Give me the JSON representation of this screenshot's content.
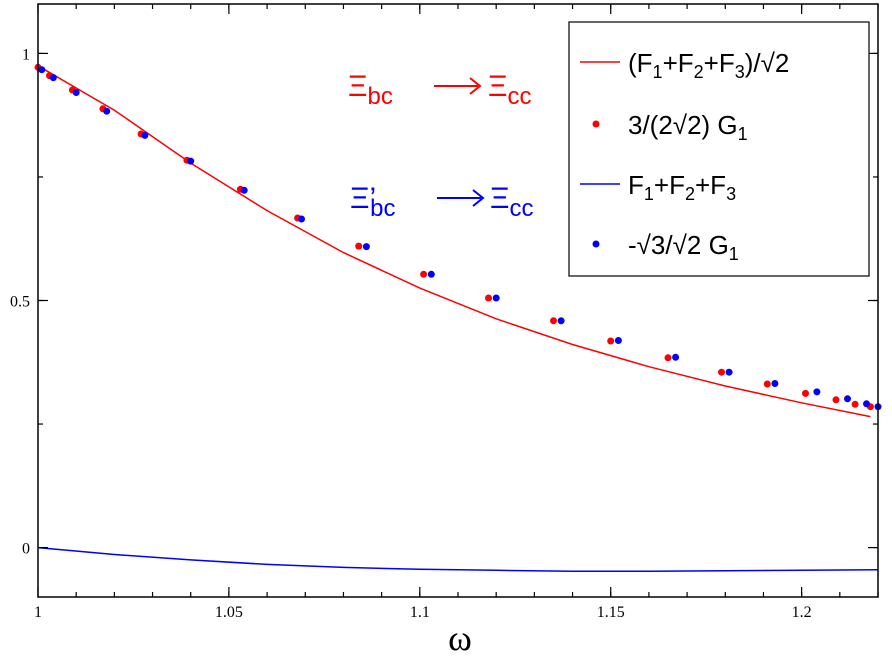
{
  "chart_data": {
    "type": "line",
    "title": "",
    "xlabel": "ω",
    "ylabel": "",
    "xlim": [
      1.0,
      1.22
    ],
    "ylim": [
      -0.1,
      1.1
    ],
    "x_ticks": [
      1,
      1.05,
      1.1,
      1.15,
      1.2
    ],
    "x_tick_labels": [
      "1",
      "1.05",
      "1.1",
      "1.15",
      "1.2"
    ],
    "y_ticks": [
      0,
      0.5,
      1
    ],
    "y_tick_labels": [
      "0",
      "0.5",
      "1"
    ],
    "grid": false,
    "legend_position": "top-right",
    "colors": {
      "red": "#ff0000",
      "blue": "#0000ff"
    },
    "series": [
      {
        "name": "(F1+F2+F3)/√2",
        "kind": "line",
        "color": "#ff0000",
        "x": [
          1.0,
          1.02,
          1.04,
          1.06,
          1.08,
          1.1,
          1.12,
          1.14,
          1.16,
          1.18,
          1.2,
          1.218
        ],
        "y": [
          0.975,
          0.885,
          0.778,
          0.682,
          0.597,
          0.525,
          0.463,
          0.411,
          0.366,
          0.327,
          0.293,
          0.265
        ]
      },
      {
        "name": "3/(2√2) G1",
        "kind": "points",
        "color": "#ff0000",
        "x": [
          1.0,
          1.003,
          1.009,
          1.017,
          1.027,
          1.039,
          1.053,
          1.068,
          1.084,
          1.101,
          1.118,
          1.135,
          1.15,
          1.165,
          1.179,
          1.191,
          1.201,
          1.209,
          1.214,
          1.218
        ],
        "y": [
          0.972,
          0.955,
          0.926,
          0.888,
          0.837,
          0.784,
          0.725,
          0.667,
          0.61,
          0.553,
          0.505,
          0.459,
          0.418,
          0.384,
          0.355,
          0.331,
          0.312,
          0.299,
          0.29,
          0.285
        ]
      },
      {
        "name": "F1+F2+F3",
        "kind": "line",
        "color": "#0000ff",
        "x": [
          1.0,
          1.02,
          1.04,
          1.06,
          1.08,
          1.1,
          1.12,
          1.14,
          1.16,
          1.18,
          1.2,
          1.22
        ],
        "y": [
          0.0,
          -0.014,
          -0.025,
          -0.034,
          -0.04,
          -0.044,
          -0.046,
          -0.048,
          -0.048,
          -0.047,
          -0.046,
          -0.045
        ]
      },
      {
        "name": "-√3/√2 G1",
        "kind": "points",
        "color": "#0000ff",
        "x": [
          1.001,
          1.004,
          1.01,
          1.018,
          1.028,
          1.04,
          1.054,
          1.069,
          1.086,
          1.103,
          1.12,
          1.137,
          1.152,
          1.167,
          1.181,
          1.193,
          1.204,
          1.212,
          1.217,
          1.22
        ],
        "y": [
          0.967,
          0.951,
          0.921,
          0.883,
          0.834,
          0.782,
          0.723,
          0.665,
          0.609,
          0.553,
          0.505,
          0.459,
          0.419,
          0.385,
          0.355,
          0.332,
          0.315,
          0.301,
          0.291,
          0.285
        ]
      }
    ],
    "legend": [
      {
        "label": "(F1+F2+F3)/√2",
        "kind": "line",
        "color": "#ff0000"
      },
      {
        "label": "3/(2√2) G1",
        "kind": "points",
        "color": "#ff0000"
      },
      {
        "label": "F1+F2+F3",
        "kind": "line",
        "color": "#0000ff"
      },
      {
        "label": "-√3/√2 G1",
        "kind": "points",
        "color": "#0000ff"
      }
    ],
    "annotations": [
      {
        "text": "Ξbc → Ξcc",
        "color": "#ff0000"
      },
      {
        "text": "Ξ'bc → Ξcc",
        "color": "#0000ff"
      }
    ]
  }
}
